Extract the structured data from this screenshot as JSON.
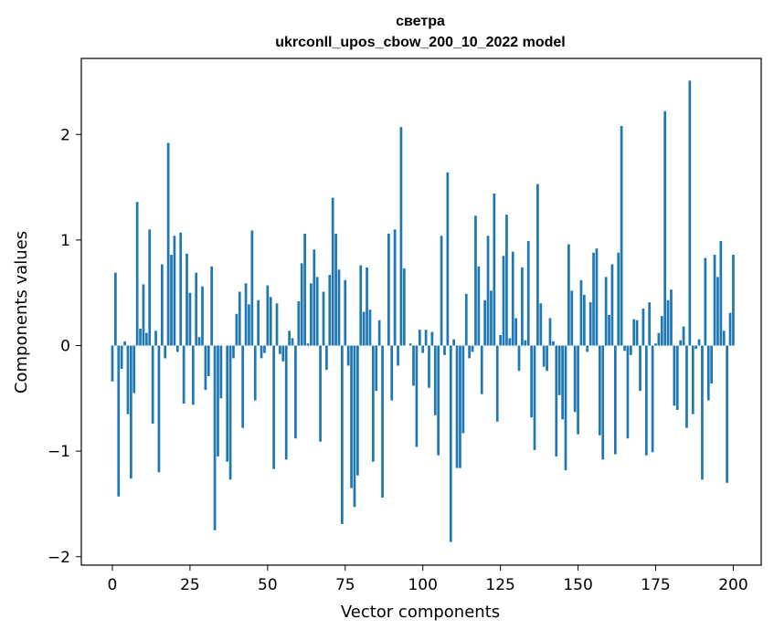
{
  "chart_data": {
    "type": "bar",
    "title": "светра",
    "subtitle": "ukrconll_upos_cbow_200_10_2022 model",
    "xlabel": "Vector components",
    "ylabel": "Components values",
    "xlim": [
      -10,
      209
    ],
    "ylim": [
      -2.08,
      2.72
    ],
    "x_ticks": [
      0,
      25,
      50,
      75,
      100,
      125,
      150,
      175,
      200
    ],
    "y_ticks": [
      -2,
      -1,
      0,
      1,
      2
    ],
    "bar_color": "#1f77b4",
    "grid": false,
    "x_start": 0,
    "values": [
      -0.34,
      0.69,
      -1.43,
      -0.22,
      0.04,
      -0.65,
      -1.26,
      -0.45,
      1.36,
      0.16,
      0.58,
      0.12,
      1.1,
      -0.74,
      0.14,
      -1.2,
      0.77,
      -0.12,
      1.92,
      0.86,
      1.04,
      -0.06,
      1.07,
      -0.55,
      0.87,
      0.5,
      -0.56,
      0.69,
      0.08,
      0.56,
      -0.42,
      -0.29,
      0.75,
      -1.75,
      -1.05,
      -0.5,
      0.0,
      -1.1,
      -1.27,
      -0.12,
      0.3,
      0.51,
      -0.78,
      0.59,
      0.39,
      1.09,
      -0.52,
      0.43,
      -0.12,
      -0.07,
      0.57,
      0.46,
      -1.17,
      0.4,
      -0.08,
      -0.15,
      -1.08,
      0.14,
      0.07,
      -0.88,
      0.42,
      0.78,
      1.06,
      0.02,
      0.59,
      0.91,
      0.65,
      -0.91,
      0.51,
      -0.23,
      0.67,
      1.4,
      1.06,
      0.72,
      -1.69,
      0.62,
      -0.19,
      -1.35,
      -1.53,
      -1.23,
      0.76,
      0.32,
      0.74,
      0.34,
      -1.1,
      -0.43,
      0.24,
      -1.44,
      0.0,
      1.06,
      -0.52,
      1.1,
      -0.19,
      2.07,
      0.73,
      0.0,
      0.02,
      -0.38,
      -0.96,
      0.15,
      -0.07,
      0.15,
      -0.4,
      0.13,
      -0.66,
      -1.04,
      1.04,
      -0.09,
      1.64,
      -1.86,
      0.06,
      -1.16,
      -1.16,
      -0.83,
      0.49,
      -0.12,
      -0.06,
      1.23,
      0.75,
      -0.46,
      0.43,
      1.04,
      0.52,
      1.44,
      -0.72,
      0.1,
      0.85,
      1.24,
      0.07,
      0.89,
      0.26,
      -0.24,
      0.74,
      0.05,
      0.99,
      -0.68,
      -0.99,
      1.53,
      0.4,
      -0.2,
      -0.24,
      0.26,
      0.04,
      -1.05,
      -0.47,
      -0.7,
      -1.18,
      0.96,
      0.52,
      -0.63,
      -0.84,
      0.62,
      0.48,
      -0.06,
      0.41,
      0.88,
      0.92,
      -0.85,
      -1.08,
      0.65,
      0.29,
      0.77,
      -1.03,
      0.88,
      2.08,
      -0.05,
      -0.88,
      -0.09,
      0.25,
      0.24,
      -0.43,
      0.35,
      -1.04,
      0.41,
      -1.01,
      0.02,
      0.12,
      0.28,
      2.22,
      0.43,
      0.53,
      -0.57,
      -0.61,
      0.05,
      0.18,
      -0.78,
      2.51,
      -0.65,
      -0.03,
      0.06,
      -1.27,
      0.83,
      -0.52,
      -0.36,
      0.86,
      0.65,
      0.99,
      0.14,
      -1.3,
      0.31,
      0.86
    ]
  }
}
